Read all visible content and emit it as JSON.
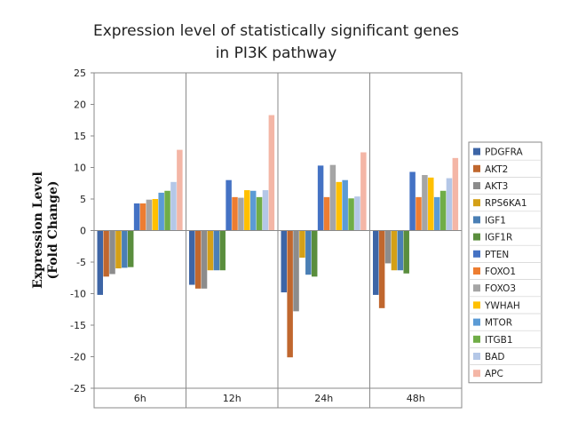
{
  "chart_data": {
    "type": "bar",
    "title_lines": [
      "Expression level of statistically significant genes",
      "in PI3K pathway"
    ],
    "xlabel": "",
    "ylabel_lines": [
      "Expression Level",
      "(Fold Change)"
    ],
    "ylim": [
      -25,
      25
    ],
    "yticks": [
      25,
      20,
      15,
      10,
      5,
      0,
      -5,
      -10,
      -15,
      -20,
      -25
    ],
    "categories": [
      "6h",
      "12h",
      "24h",
      "48h"
    ],
    "grid": "vertical-separators",
    "legend_position": "right",
    "series": [
      {
        "name": "PDGFRA",
        "color": "#3D65A6",
        "values": [
          -10.2,
          -8.6,
          -9.8,
          -10.2
        ]
      },
      {
        "name": "AKT2",
        "color": "#C0672E",
        "values": [
          -7.3,
          -9.2,
          -20.1,
          -12.3
        ]
      },
      {
        "name": "AKT3",
        "color": "#8C8C8C",
        "values": [
          -6.9,
          -9.2,
          -12.8,
          -5.2
        ]
      },
      {
        "name": "RPS6KA1",
        "color": "#D4A017",
        "values": [
          -6.0,
          -6.3,
          -4.3,
          -6.3
        ]
      },
      {
        "name": "IGF1",
        "color": "#4A7FB5",
        "values": [
          -5.9,
          -6.3,
          -7.0,
          -6.3
        ]
      },
      {
        "name": "IGF1R",
        "color": "#5A8E3D",
        "values": [
          -5.8,
          -6.3,
          -7.3,
          -6.8
        ]
      },
      {
        "name": "PTEN",
        "color": "#4472C4",
        "values": [
          4.3,
          8.0,
          10.3,
          9.3
        ]
      },
      {
        "name": "FOXO1",
        "color": "#ED7D31",
        "values": [
          4.3,
          5.3,
          5.3,
          5.3
        ]
      },
      {
        "name": "FOXO3",
        "color": "#A5A5A5",
        "values": [
          4.9,
          5.2,
          10.4,
          8.8
        ]
      },
      {
        "name": "YWHAH",
        "color": "#FFC000",
        "values": [
          5.0,
          6.4,
          7.7,
          8.4
        ]
      },
      {
        "name": "MTOR",
        "color": "#5B9BD5",
        "values": [
          6.0,
          6.3,
          8.0,
          5.3
        ]
      },
      {
        "name": "ITGB1",
        "color": "#70AD47",
        "values": [
          6.3,
          5.3,
          5.1,
          6.3
        ]
      },
      {
        "name": "BAD",
        "color": "#B4C7E7",
        "values": [
          7.7,
          6.4,
          5.4,
          8.3
        ]
      },
      {
        "name": "APC",
        "color": "#F4B6A6",
        "values": [
          12.8,
          18.3,
          12.4,
          11.5
        ]
      }
    ]
  }
}
